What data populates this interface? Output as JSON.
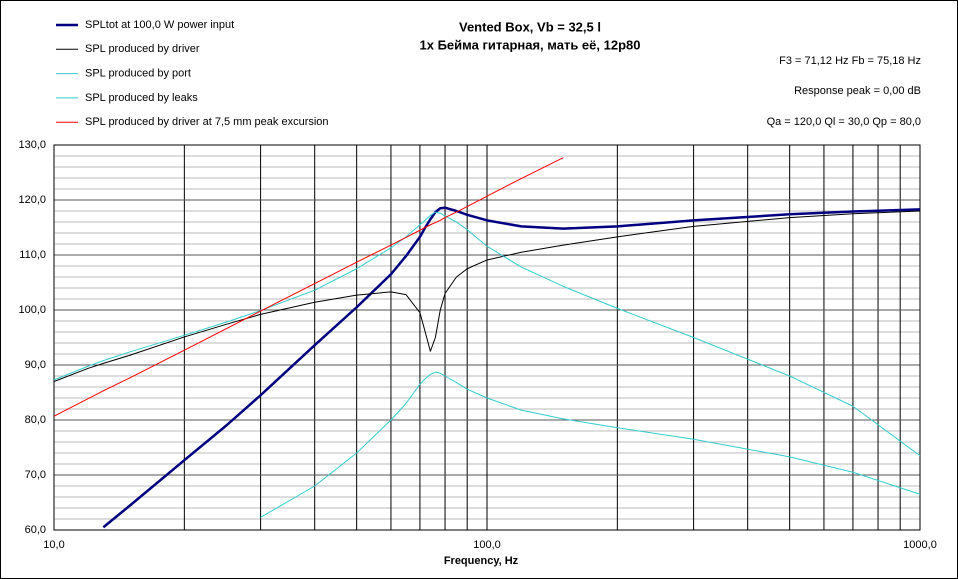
{
  "chart_data": {
    "type": "line",
    "title": "Vented Box, Vb = 32,5 l",
    "subtitle": "1x Бейма гитарная, мать её, 12p80",
    "annotations": [
      "F3 = 71,12 Hz  Fb = 75,18 Hz",
      "Response peak = 0,00 dB",
      "Qa = 120,0  Ql = 30,0  Qp = 80,0"
    ],
    "xlabel": "Frequency, Hz",
    "log_x": true,
    "legend": "top-left",
    "xlim": [
      10,
      1000
    ],
    "ylim": [
      60,
      130
    ],
    "xticks": [
      {
        "value": 10,
        "label": "10,0"
      },
      {
        "value": 100,
        "label": "100,0"
      },
      {
        "value": 1000,
        "label": "1000,0"
      }
    ],
    "yticks": [
      {
        "value": 60,
        "label": "60,0"
      },
      {
        "value": 70,
        "label": "70,0"
      },
      {
        "value": 80,
        "label": "80,0"
      },
      {
        "value": 90,
        "label": "90,0"
      },
      {
        "value": 100,
        "label": "100,0"
      },
      {
        "value": 110,
        "label": "110,0"
      },
      {
        "value": 120,
        "label": "120,0"
      },
      {
        "value": 130,
        "label": "130,0"
      }
    ],
    "x_minor_grid": [
      20,
      30,
      40,
      50,
      60,
      70,
      80,
      90,
      200,
      300,
      400,
      500,
      600,
      700,
      800,
      900
    ],
    "y_minor_grid": [
      62,
      64,
      66,
      68,
      72,
      74,
      76,
      78,
      82,
      84,
      86,
      88,
      92,
      94,
      96,
      98,
      102,
      104,
      106,
      108,
      112,
      114,
      116,
      118,
      122,
      124,
      126,
      128
    ],
    "x": [
      10,
      12,
      13,
      15,
      20,
      25,
      30,
      40,
      50,
      60,
      65,
      70,
      72,
      74,
      76,
      78,
      80,
      85,
      90,
      100,
      120,
      150,
      200,
      300,
      500,
      700,
      1000
    ],
    "series": [
      {
        "name": "SPLtot at 100,0 W power input",
        "color": "#000080",
        "width": 2.5,
        "values": [
          null,
          null,
          60.5,
          64.5,
          72.7,
          79,
          84.5,
          93.6,
          100.5,
          106.5,
          109.8,
          113.3,
          115,
          116.5,
          117.8,
          118.5,
          118.6,
          118,
          117.3,
          116.3,
          115.2,
          114.8,
          115.2,
          116.3,
          117.4,
          117.9,
          118.3
        ]
      },
      {
        "name": "SPL produced by driver",
        "color": "#000000",
        "width": 1,
        "values": [
          87,
          89.4,
          90.3,
          91.8,
          95.1,
          97.4,
          99.2,
          101.4,
          102.7,
          103.3,
          102.8,
          99.5,
          96,
          92.5,
          95,
          100,
          103,
          106,
          107.5,
          109.1,
          110.5,
          111.8,
          113.3,
          115.2,
          116.8,
          117.5,
          118
        ]
      },
      {
        "name": "SPL produced by port",
        "color": "#33cccc",
        "width": 1,
        "values": [
          87.3,
          89.8,
          90.8,
          92.4,
          95.4,
          97.8,
          99.9,
          103.6,
          107.5,
          111.3,
          113.3,
          115.5,
          116.3,
          117.2,
          117.8,
          117.6,
          117.1,
          116,
          114.6,
          111.6,
          107.8,
          104.3,
          100.3,
          95,
          88,
          82.5,
          73.5
        ]
      },
      {
        "name": "SPL produced by leaks",
        "color": "#33cccc",
        "width": 1,
        "values": [
          null,
          null,
          null,
          null,
          null,
          null,
          62.3,
          68,
          74,
          80,
          83,
          86.5,
          87.5,
          88.3,
          88.7,
          88.5,
          88,
          86.8,
          85.6,
          84,
          81.8,
          80.2,
          78.6,
          76.5,
          73.3,
          70.5,
          66.5
        ]
      },
      {
        "name": "SPL produced by driver at 7,5 mm peak excursion",
        "color": "#ff0000",
        "width": 1,
        "values": [
          80.7,
          83.9,
          85.3,
          87.7,
          92.7,
          96.6,
          99.8,
          104.8,
          108.7,
          111.8,
          113.2,
          114.5,
          115,
          115.5,
          115.9,
          116.3,
          116.8,
          117.8,
          118.8,
          120.7,
          123.9,
          127.7,
          null,
          null,
          null,
          null,
          null
        ]
      }
    ]
  }
}
